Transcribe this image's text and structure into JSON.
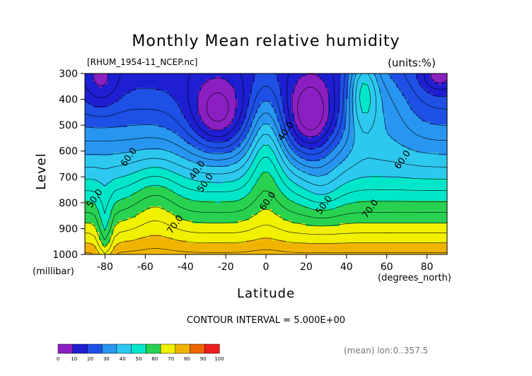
{
  "title": "Monthly Mean relative humidity",
  "file_label": "[RHUM_1954-11_NCEP.nc]",
  "units_label": "(units:%)",
  "y_axis_label": "Level",
  "y_axis_unit": "(millibar)",
  "x_axis_label": "Latitude",
  "x_axis_unit": "(degrees_north)",
  "contour_interval_text": "CONTOUR INTERVAL = 5.000E+00",
  "mean_note": "(mean) lon:0..357.5",
  "chart_data": {
    "type": "contour",
    "title": "Monthly Mean relative humidity",
    "xlabel": "Latitude",
    "ylabel": "Level",
    "x_unit": "(degrees_north)",
    "y_unit": "(millibar)",
    "xlim": [
      -90,
      90
    ],
    "ylim": [
      1000,
      300
    ],
    "x_ticks": [
      -80,
      -60,
      -40,
      -20,
      0,
      20,
      40,
      60,
      80
    ],
    "x_tick_labels": [
      "-80",
      "-60",
      "-40",
      "-20",
      "0",
      "20",
      "40",
      "60",
      "80"
    ],
    "y_ticks": [
      300,
      400,
      500,
      600,
      700,
      800,
      900,
      1000
    ],
    "y_tick_labels": [
      "300",
      "400",
      "500",
      "600",
      "700",
      "800",
      "900",
      "1000"
    ],
    "contour_interval": 5.0,
    "contour_labels": [
      {
        "x": -67,
        "y": 630,
        "text": "60.0"
      },
      {
        "x": -33,
        "y": 680,
        "text": "40.0"
      },
      {
        "x": -29,
        "y": 730,
        "text": "50.0"
      },
      {
        "x": 11,
        "y": 530,
        "text": "40.0"
      },
      {
        "x": 2,
        "y": 800,
        "text": "60.0"
      },
      {
        "x": 30,
        "y": 815,
        "text": "50.0"
      },
      {
        "x": -44,
        "y": 890,
        "text": "70.0"
      },
      {
        "x": 53,
        "y": 830,
        "text": "70.0"
      },
      {
        "x": 69,
        "y": 640,
        "text": "60.0"
      },
      {
        "x": -84,
        "y": 790,
        "text": "50.0"
      }
    ],
    "colorbar": {
      "bins": [
        0,
        10,
        20,
        30,
        40,
        50,
        60,
        70,
        80,
        90,
        100
      ],
      "tick_labels": [
        "0",
        "10",
        "20",
        "30",
        "40",
        "50",
        "60",
        "70",
        "80",
        "90",
        "100"
      ],
      "colors": [
        "#8b1fc2",
        "#1e1ed2",
        "#1e50e6",
        "#2896f0",
        "#2dc8f0",
        "#00e6c8",
        "#28d250",
        "#f0f000",
        "#f0b400",
        "#f06400",
        "#f01e1e"
      ]
    },
    "field_description": "Relative humidity (%) vs latitude and pressure level, longitudinal mean"
  }
}
